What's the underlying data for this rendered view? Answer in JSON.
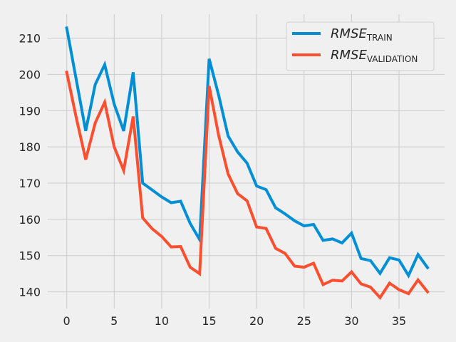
{
  "chart_data": {
    "type": "line",
    "title": "",
    "xlabel": "",
    "ylabel": "",
    "xlim": [
      -2.0,
      39.8
    ],
    "ylim": [
      135.4,
      216.6
    ],
    "xticks": [
      0,
      5,
      10,
      15,
      20,
      25,
      30,
      35
    ],
    "yticks": [
      140,
      150,
      160,
      170,
      180,
      190,
      200,
      210
    ],
    "grid": true,
    "legend_position": "top-right",
    "background_color": "#f0f0f0",
    "grid_color": "#cbcbcb",
    "series": [
      {
        "name": "RMSE_TRAIN",
        "legend_main": "RMSE",
        "legend_sub": "TRAIN",
        "color": "#008fd5",
        "x": [
          0,
          1,
          2,
          3,
          4,
          5,
          6,
          7,
          8,
          9,
          10,
          11,
          12,
          13,
          14,
          15,
          16,
          17,
          18,
          19,
          20,
          21,
          22,
          23,
          24,
          25,
          26,
          27,
          28,
          29,
          30,
          31,
          32,
          33,
          34,
          35,
          36,
          37,
          38
        ],
        "values": [
          212.8,
          198.6,
          184.4,
          197.2,
          202.7,
          191.8,
          184.4,
          200.6,
          170.0,
          168.1,
          166.2,
          164.6,
          165.0,
          158.9,
          154.4,
          204.3,
          194.3,
          183.0,
          178.6,
          175.5,
          169.2,
          168.2,
          163.2,
          161.5,
          159.6,
          158.2,
          158.6,
          154.2,
          154.6,
          153.5,
          156.2,
          149.2,
          148.6,
          145.1,
          149.4,
          148.8,
          144.5,
          150.3,
          146.7
        ]
      },
      {
        "name": "RMSE_VALIDATION",
        "legend_main": "RMSE",
        "legend_sub": "VALIDATION",
        "color": "#fc4f30",
        "x": [
          0,
          1,
          2,
          3,
          4,
          5,
          6,
          7,
          8,
          9,
          10,
          11,
          12,
          13,
          14,
          15,
          16,
          17,
          18,
          19,
          20,
          21,
          22,
          23,
          24,
          25,
          26,
          27,
          28,
          29,
          30,
          31,
          32,
          33,
          34,
          35,
          36,
          37,
          38
        ],
        "values": [
          200.6,
          188.1,
          176.5,
          186.6,
          192.3,
          180.0,
          173.5,
          188.4,
          160.4,
          157.4,
          155.3,
          152.4,
          152.5,
          146.8,
          145.0,
          196.8,
          183.2,
          172.5,
          167.1,
          165.1,
          157.9,
          157.5,
          152.0,
          150.6,
          147.1,
          146.8,
          147.9,
          142.0,
          143.2,
          143.0,
          145.5,
          142.2,
          141.3,
          138.4,
          142.4,
          140.6,
          139.5,
          143.3,
          140.0
        ]
      }
    ]
  }
}
